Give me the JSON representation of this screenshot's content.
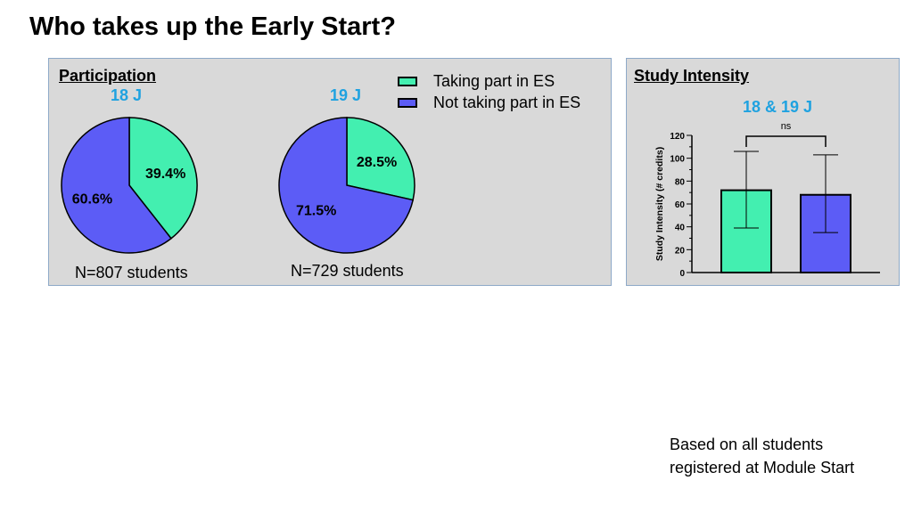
{
  "page": {
    "title": "Who takes up the Early Start?",
    "footnote_line1": "Based on all students",
    "footnote_line2": "registered at Module Start"
  },
  "colors": {
    "taking_part": "#43efb0",
    "not_taking_part": "#5c5cf6",
    "panel_bg": "#d9d9d9",
    "cohort_label": "#1fa2e0"
  },
  "participation": {
    "heading": "Participation",
    "legend": [
      "Taking part in ES",
      "Not taking part in ES"
    ]
  },
  "intensity": {
    "heading": "Study Intensity",
    "cohort_label": "18 & 19 J",
    "significance": "ns"
  },
  "chart_data": [
    {
      "type": "pie",
      "title": "18 J",
      "labels": [
        "Taking part in ES",
        "Not taking part in ES"
      ],
      "values": [
        39.4,
        60.6
      ],
      "value_labels": [
        "39.4%",
        "60.6%"
      ],
      "n_label": "N=807 students"
    },
    {
      "type": "pie",
      "title": "19 J",
      "labels": [
        "Taking part in ES",
        "Not taking part in ES"
      ],
      "values": [
        28.5,
        71.5
      ],
      "value_labels": [
        "28.5%",
        "71.5%"
      ],
      "n_label": "N=729 students"
    },
    {
      "type": "bar",
      "title": "18 & 19 J",
      "categories": [
        "Taking part in ES",
        "Not taking part in ES"
      ],
      "values": [
        72,
        68
      ],
      "error_low": [
        39,
        35
      ],
      "error_high": [
        106,
        103
      ],
      "ylabel": "Study Intensity (# credits)",
      "ylim": [
        0,
        120
      ],
      "yticks": [
        "0",
        "20",
        "40",
        "60",
        "80",
        "100",
        "120"
      ],
      "annotation": "ns"
    }
  ]
}
